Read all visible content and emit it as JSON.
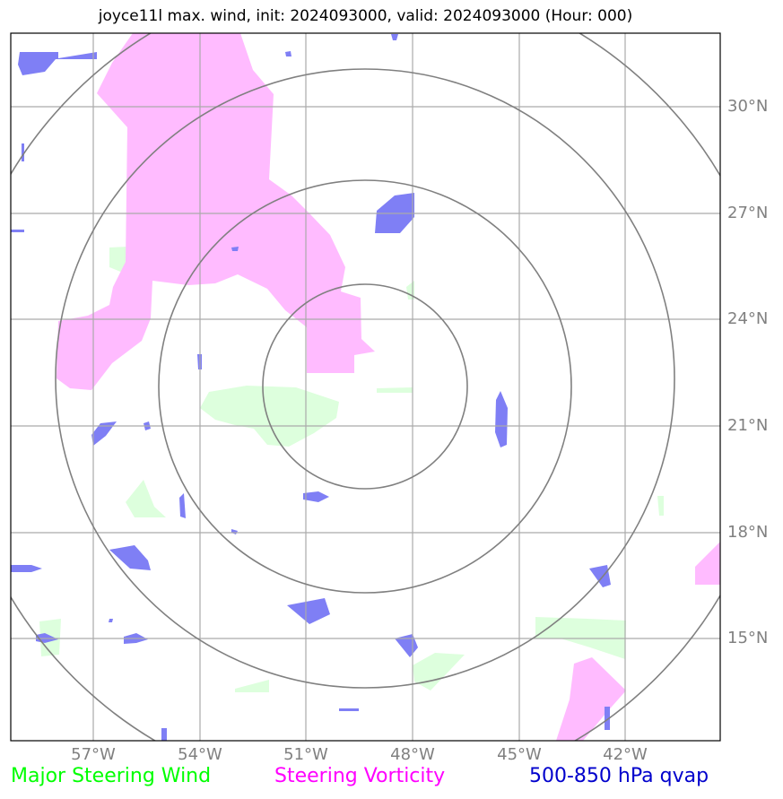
{
  "title": "joyce11l max. wind, init: 2024093000, valid: 2024093000 (Hour: 000)",
  "latitude_labels": [
    "30°N",
    "27°N",
    "24°N",
    "21°N",
    "18°N",
    "15°N"
  ],
  "longitude_labels": [
    "57°W",
    "54°W",
    "51°W",
    "48°W",
    "45°W",
    "42°W"
  ],
  "legend": {
    "wind": {
      "label": "Major Steering Wind",
      "color": "#00ff00"
    },
    "vorticity": {
      "label": "Steering Vorticity",
      "color": "#ff00ff"
    },
    "qvap": {
      "label": "500-850 hPa qvap",
      "color": "#0000cc"
    }
  },
  "colors": {
    "vorticity_fill": "#ffbbff",
    "qvap_fill": "#7f7ff5",
    "wind_fill": "#ddffdd",
    "rings": "#808080",
    "grid": "#aaaaaa"
  }
}
